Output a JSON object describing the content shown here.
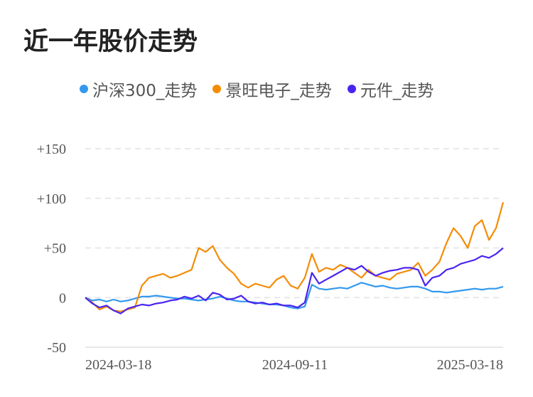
{
  "title": "近一年股价走势",
  "legend": [
    {
      "label": "沪深300_走势",
      "color": "#3399EE"
    },
    {
      "label": "景旺电子_走势",
      "color": "#F48C06"
    },
    {
      "label": "元件_走势",
      "color": "#4B24F0"
    }
  ],
  "chart_data": {
    "type": "line",
    "title": "近一年股价走势",
    "xlabel": "",
    "ylabel": "",
    "ylim": [
      -50,
      150
    ],
    "yticks": [
      "+150",
      "+100",
      "+50",
      "0",
      "-50"
    ],
    "ytick_values": [
      150,
      100,
      50,
      0,
      -50
    ],
    "xticks": [
      "2024-03-18",
      "2024-09-11",
      "2025-03-18"
    ],
    "grid": true,
    "legend_position": "top",
    "x": [
      0,
      1,
      2,
      3,
      4,
      5,
      6,
      7,
      8,
      9,
      10,
      11,
      12,
      13,
      14,
      15,
      16,
      17,
      18,
      19,
      20,
      21,
      22,
      23,
      24,
      25,
      26,
      27,
      28,
      29,
      30,
      31,
      32,
      33,
      34,
      35,
      36,
      37,
      38,
      39,
      40,
      41,
      42,
      43,
      44,
      45,
      46,
      47,
      48,
      49,
      50,
      51,
      52,
      53,
      54,
      55,
      56,
      57,
      58,
      59
    ],
    "series": [
      {
        "name": "沪深300_走势",
        "color": "#3399EE",
        "values": [
          0,
          -3,
          -2,
          -4,
          -2,
          -4,
          -3,
          -1,
          1,
          1,
          2,
          1,
          0,
          -1,
          -1,
          -2,
          -3,
          -2,
          -1,
          1,
          -1,
          -3,
          -4,
          -4,
          -5,
          -6,
          -7,
          -7,
          -8,
          -10,
          -11,
          -9,
          13,
          9,
          8,
          9,
          10,
          9,
          12,
          15,
          13,
          11,
          12,
          10,
          9,
          10,
          11,
          11,
          9,
          6,
          6,
          5,
          6,
          7,
          8,
          9,
          8,
          9,
          9,
          11
        ]
      },
      {
        "name": "景旺电子_走势",
        "color": "#F48C06",
        "values": [
          0,
          -5,
          -12,
          -9,
          -13,
          -14,
          -12,
          -10,
          12,
          20,
          22,
          24,
          20,
          22,
          25,
          28,
          50,
          46,
          52,
          38,
          30,
          24,
          14,
          10,
          14,
          12,
          10,
          18,
          22,
          12,
          9,
          20,
          44,
          26,
          30,
          28,
          33,
          30,
          25,
          20,
          28,
          22,
          20,
          18,
          24,
          26,
          28,
          35,
          22,
          28,
          36,
          55,
          70,
          62,
          50,
          72,
          78,
          58,
          70,
          96
        ]
      },
      {
        "name": "元件_走势",
        "color": "#4B24F0",
        "values": [
          0,
          -6,
          -10,
          -8,
          -13,
          -16,
          -11,
          -9,
          -7,
          -8,
          -6,
          -5,
          -3,
          -2,
          1,
          -1,
          2,
          -3,
          5,
          3,
          -2,
          -1,
          2,
          -4,
          -6,
          -5,
          -7,
          -6,
          -8,
          -8,
          -10,
          -5,
          25,
          14,
          18,
          22,
          26,
          30,
          28,
          32,
          26,
          22,
          25,
          27,
          28,
          30,
          30,
          28,
          12,
          20,
          22,
          28,
          30,
          34,
          36,
          38,
          42,
          40,
          44,
          50
        ]
      }
    ]
  }
}
